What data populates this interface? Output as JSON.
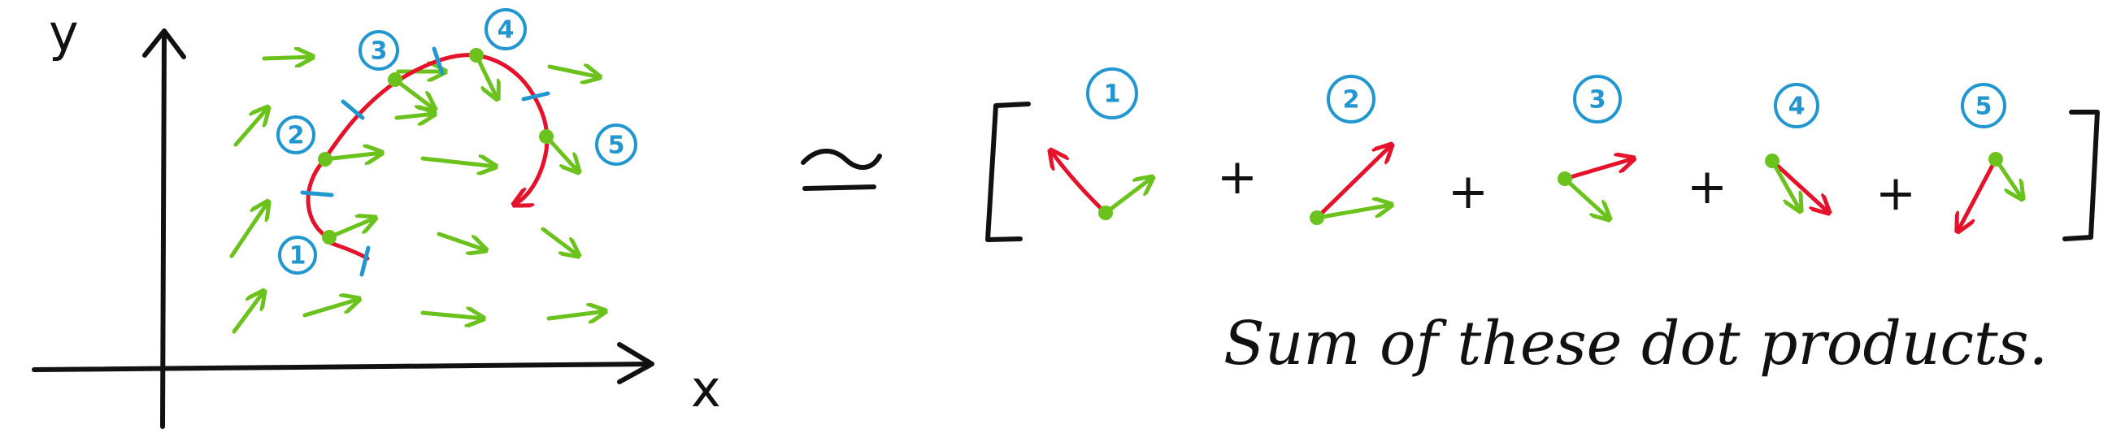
{
  "colors": {
    "ink": "#111111",
    "field": "#6cc21c",
    "curve": "#e4122a",
    "marker": "#2196cf"
  },
  "axes": {
    "x_label": "x",
    "y_label": "y"
  },
  "segments": [
    "1",
    "2",
    "3",
    "4",
    "5"
  ],
  "approx_symbol": "≃",
  "plus": "+",
  "caption": "Sum of these dot products."
}
